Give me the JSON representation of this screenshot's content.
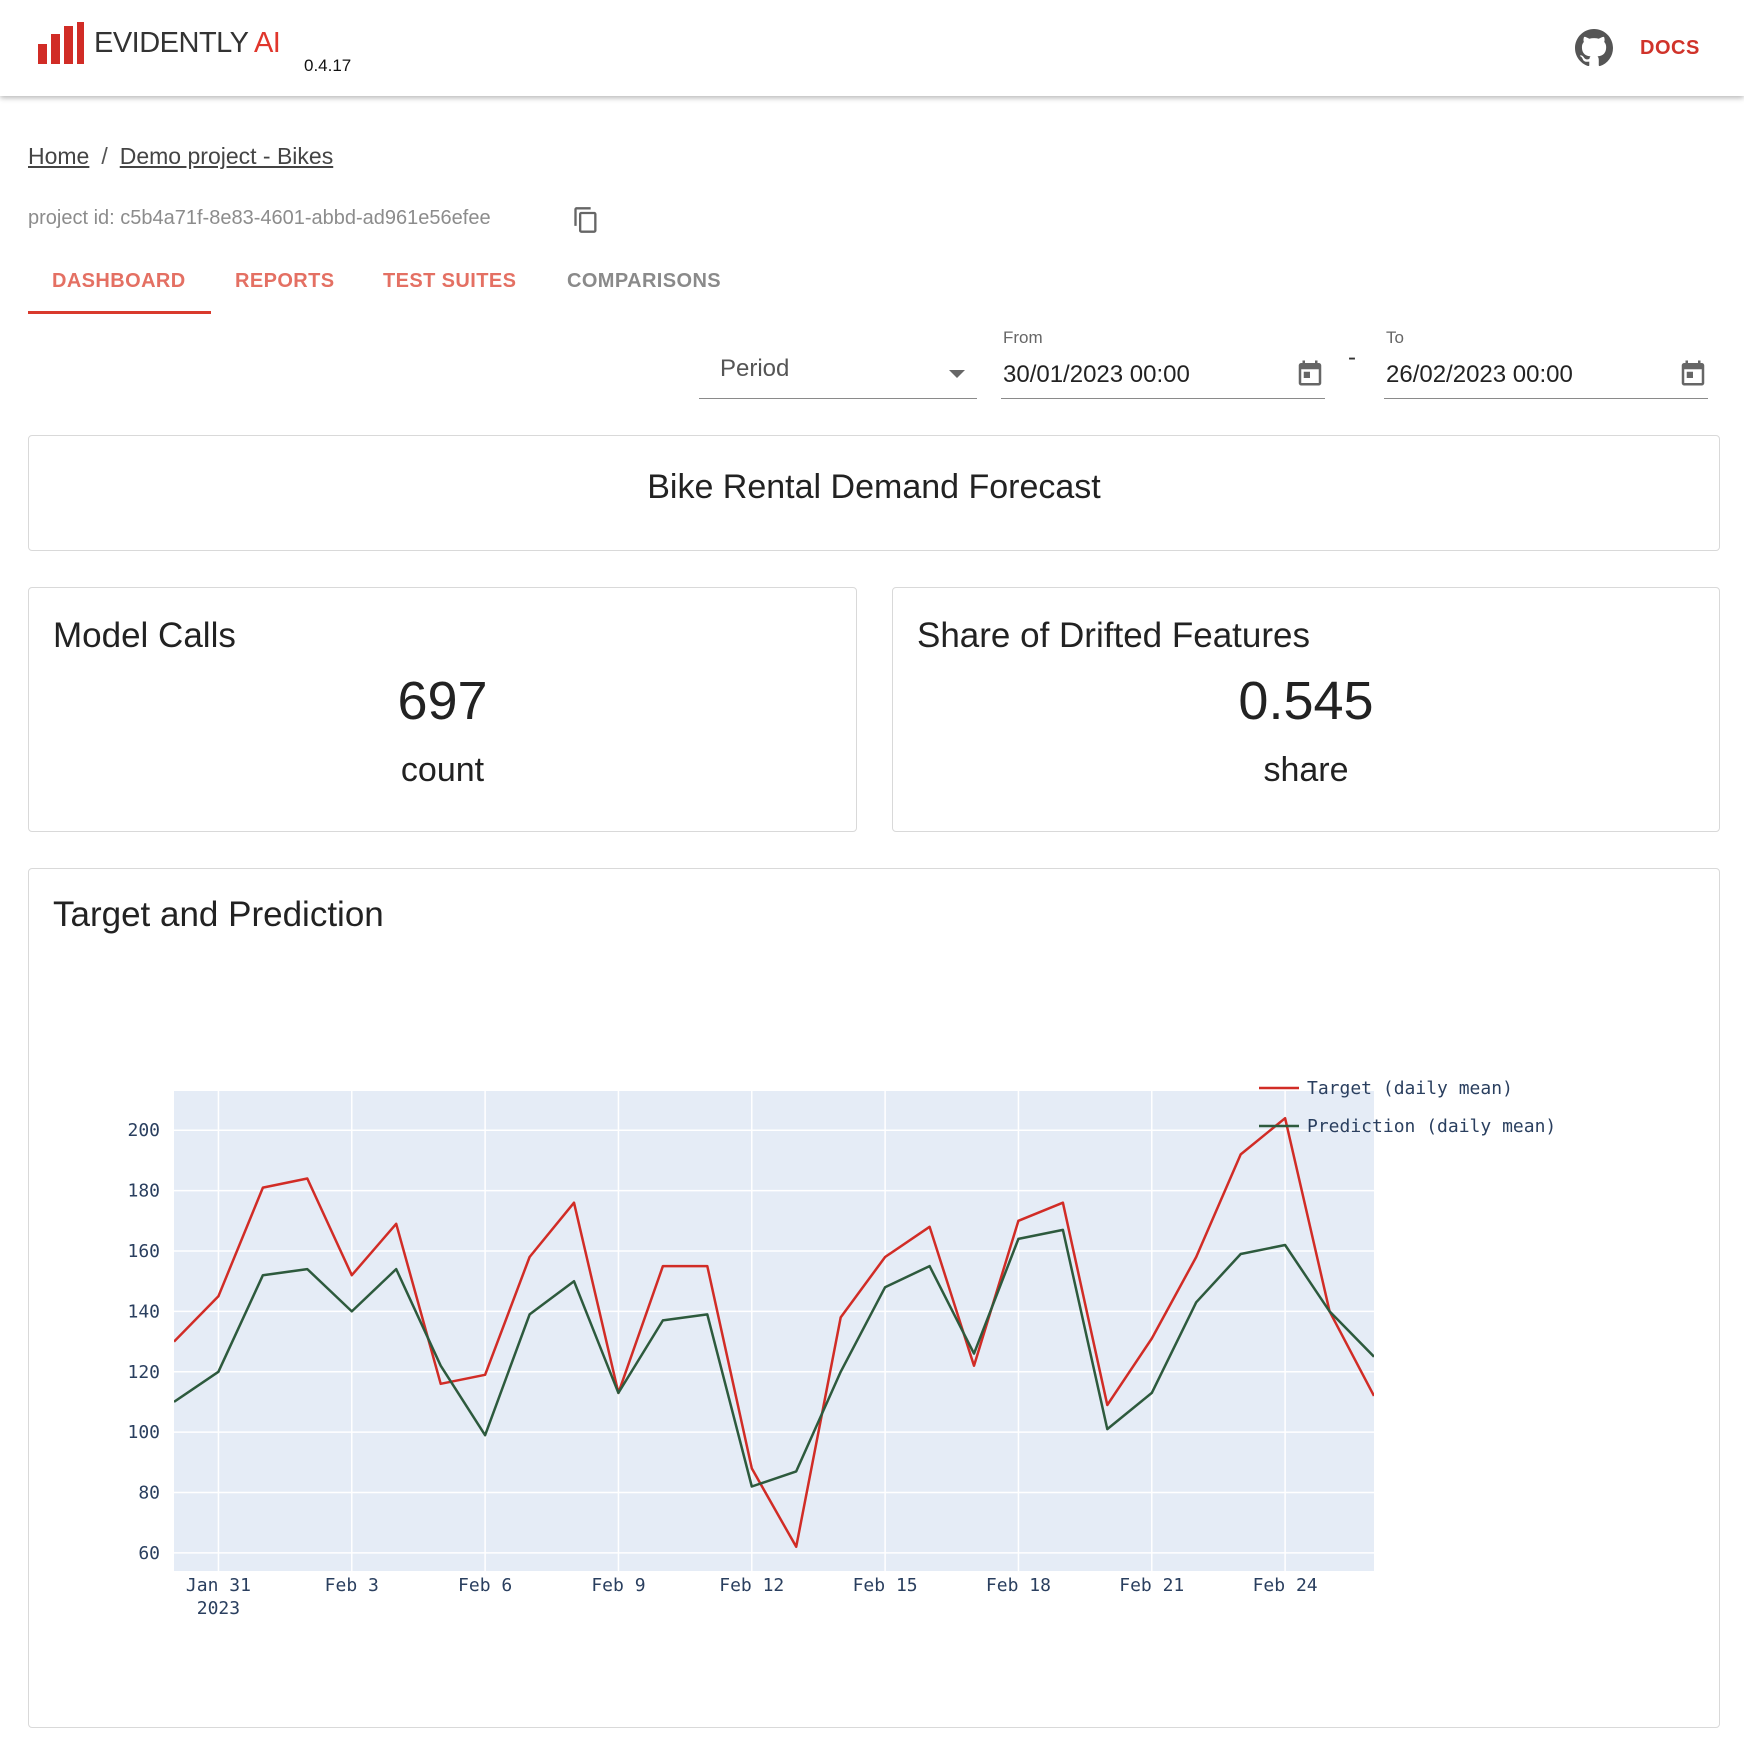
{
  "header": {
    "brand": "EVIDENTLY",
    "brand_suffix": "AI",
    "version": "0.4.17",
    "docs_label": "DOCS",
    "brand_color": "#e0362c",
    "icons": [
      "logo-bars-icon",
      "github-icon"
    ]
  },
  "breadcrumb": {
    "home": "Home",
    "separator": "/",
    "project": "Demo project - Bikes"
  },
  "project": {
    "id_text": "project id: c5b4a71f-8e83-4601-abbd-ad961e56efee",
    "copy_icon": "copy-icon"
  },
  "tabs": [
    {
      "label": "DASHBOARD",
      "active": true
    },
    {
      "label": "REPORTS",
      "active": false
    },
    {
      "label": "TEST SUITES",
      "active": false
    },
    {
      "label": "COMPARISONS",
      "active": false
    }
  ],
  "filters": {
    "period_value": "Period",
    "from_label": "From",
    "from_value": "30/01/2023 00:00",
    "range_dash": "-",
    "to_label": "To",
    "to_value": "26/02/2023 00:00"
  },
  "dashboard": {
    "title": "Bike Rental Demand Forecast",
    "metrics": [
      {
        "title": "Model Calls",
        "value": "697",
        "unit": "count"
      },
      {
        "title": "Share of Drifted Features",
        "value": "0.545",
        "unit": "share"
      }
    ],
    "chart_title": "Target and Prediction"
  },
  "chart_data": {
    "type": "line",
    "title": "Target and Prediction",
    "xlabel": "",
    "ylabel": "",
    "x_start": "2023-01-30",
    "x_step_days": 1,
    "x_tick_labels": [
      {
        "date": "2023-01-31",
        "label": "Jan 31",
        "sublabel": "2023"
      },
      {
        "date": "2023-02-03",
        "label": "Feb 3"
      },
      {
        "date": "2023-02-06",
        "label": "Feb 6"
      },
      {
        "date": "2023-02-09",
        "label": "Feb 9"
      },
      {
        "date": "2023-02-12",
        "label": "Feb 12"
      },
      {
        "date": "2023-02-15",
        "label": "Feb 15"
      },
      {
        "date": "2023-02-18",
        "label": "Feb 18"
      },
      {
        "date": "2023-02-21",
        "label": "Feb 21"
      },
      {
        "date": "2023-02-24",
        "label": "Feb 24"
      }
    ],
    "y_ticks": [
      60,
      80,
      100,
      120,
      140,
      160,
      180,
      200
    ],
    "xlim": [
      "2023-01-30",
      "2023-02-26"
    ],
    "ylim": [
      54,
      213
    ],
    "grid": true,
    "legend_position": "right-top",
    "plot_bg": "#e5ecf6",
    "series": [
      {
        "name": "Target (daily mean)",
        "color": "#d12c26",
        "values": [
          130,
          145,
          181,
          184,
          152,
          169,
          116,
          119,
          158,
          176,
          113,
          155,
          155,
          88,
          62,
          138,
          158,
          168,
          122,
          170,
          176,
          109,
          131,
          158,
          192,
          204,
          140,
          112
        ]
      },
      {
        "name": "Prediction (daily mean)",
        "color": "#2d5a3d",
        "values": [
          110,
          120,
          152,
          154,
          140,
          154,
          122,
          99,
          139,
          150,
          113,
          137,
          139,
          82,
          87,
          120,
          148,
          155,
          126,
          164,
          167,
          101,
          113,
          143,
          159,
          162,
          140,
          125
        ]
      }
    ]
  }
}
